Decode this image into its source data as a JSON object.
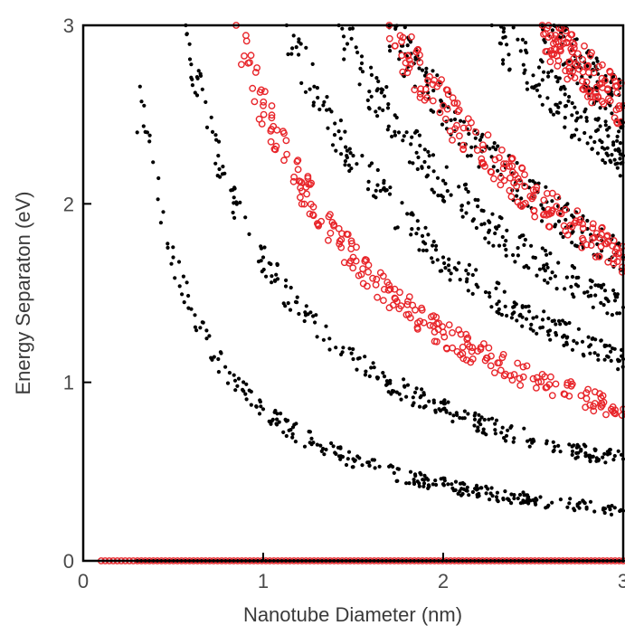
{
  "chart_data": {
    "type": "scatter",
    "title": "",
    "xlabel": "Nanotube Diameter (nm)",
    "ylabel": "Energy Separaton (eV)",
    "xlim": [
      0,
      3
    ],
    "ylim": [
      0,
      3
    ],
    "x_ticks": [
      "0",
      "1",
      "2",
      "3"
    ],
    "y_ticks": [
      "0",
      "1",
      "2",
      "3"
    ],
    "grid": false,
    "legend": "none",
    "colors": {
      "semiconducting": "#000000",
      "metallic": "#e8252a",
      "axis": "#000000"
    },
    "series": [
      {
        "marker": "filled-circle",
        "color": "#000000",
        "band_curves": [
          {
            "k": 0.85,
            "points": [
              [
                0.3,
                2.4
              ],
              [
                0.5,
                1.7
              ],
              [
                0.75,
                1.13
              ],
              [
                1.0,
                0.85
              ],
              [
                1.5,
                0.57
              ],
              [
                2.0,
                0.43
              ],
              [
                2.5,
                0.34
              ],
              [
                3.0,
                0.28
              ]
            ]
          },
          {
            "k": 1.7,
            "points": [
              [
                0.57,
                3.0
              ],
              [
                0.75,
                2.27
              ],
              [
                1.0,
                1.7
              ],
              [
                1.5,
                1.13
              ],
              [
                2.0,
                0.85
              ],
              [
                2.5,
                0.68
              ],
              [
                3.0,
                0.57
              ]
            ]
          },
          {
            "k": 3.4,
            "points": [
              [
                1.13,
                3.0
              ],
              [
                1.5,
                2.27
              ],
              [
                2.0,
                1.7
              ],
              [
                2.5,
                1.36
              ],
              [
                3.0,
                1.13
              ]
            ]
          },
          {
            "k": 4.25,
            "points": [
              [
                1.42,
                3.0
              ],
              [
                2.0,
                2.13
              ],
              [
                2.5,
                1.7
              ],
              [
                3.0,
                1.42
              ]
            ]
          },
          {
            "k": 5.1,
            "points": [
              [
                1.7,
                3.0
              ],
              [
                2.0,
                2.55
              ],
              [
                2.5,
                2.04
              ],
              [
                3.0,
                1.7
              ]
            ]
          },
          {
            "k": 6.8,
            "points": [
              [
                2.27,
                3.0
              ],
              [
                2.5,
                2.72
              ],
              [
                3.0,
                2.27
              ]
            ]
          },
          {
            "k": 7.65,
            "points": [
              [
                2.55,
                3.0
              ],
              [
                3.0,
                2.55
              ]
            ]
          }
        ],
        "zero_line": {
          "y": 0,
          "x_range": [
            0.3,
            3.0
          ]
        }
      },
      {
        "marker": "open-circle",
        "color": "#e8252a",
        "band_curves": [
          {
            "k": 2.55,
            "points": [
              [
                0.85,
                3.0
              ],
              [
                1.0,
                2.55
              ],
              [
                1.5,
                1.7
              ],
              [
                2.0,
                1.28
              ],
              [
                2.5,
                1.02
              ],
              [
                3.0,
                0.85
              ]
            ]
          },
          {
            "k": 5.1,
            "points": [
              [
                1.7,
                3.0
              ],
              [
                2.0,
                2.55
              ],
              [
                2.5,
                2.04
              ],
              [
                3.0,
                1.7
              ]
            ]
          },
          {
            "k": 7.65,
            "points": [
              [
                2.55,
                3.0
              ],
              [
                3.0,
                2.55
              ]
            ]
          }
        ],
        "zero_line": {
          "y": 0,
          "x_range": [
            0.1,
            3.0
          ]
        }
      }
    ]
  }
}
